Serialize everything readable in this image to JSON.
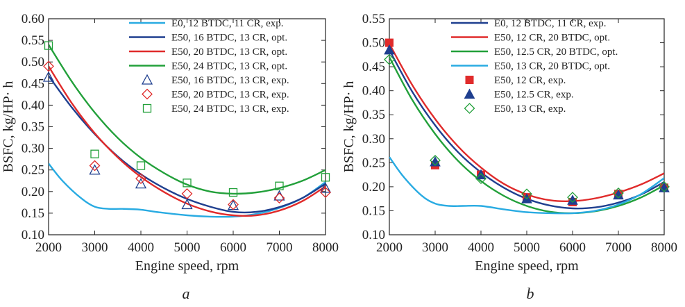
{
  "chart_data": [
    {
      "type": "line",
      "panel_label": "a",
      "xlabel": "Engine speed, rpm",
      "ylabel": "BSFC, kg/HP· h",
      "xlim": [
        2000,
        8000
      ],
      "ylim": [
        0.1,
        0.6
      ],
      "xticks": [
        2000,
        3000,
        4000,
        5000,
        6000,
        7000,
        8000
      ],
      "yticks": [
        0.1,
        0.15,
        0.2,
        0.25,
        0.3,
        0.35,
        0.4,
        0.45,
        0.5,
        0.55,
        0.6
      ],
      "legend_position": "top-right",
      "series": [
        {
          "name": "E0, 12 BTDC, 11 CR, exp.",
          "kind": "line",
          "color": "#29abe2",
          "x": [
            2000,
            2300,
            2700,
            3000,
            3300,
            3600,
            4000,
            4400,
            5000,
            5500,
            6000,
            6500,
            7000,
            7500,
            8000
          ],
          "y": [
            0.265,
            0.225,
            0.185,
            0.165,
            0.16,
            0.16,
            0.158,
            0.152,
            0.145,
            0.142,
            0.142,
            0.148,
            0.162,
            0.185,
            0.222
          ]
        },
        {
          "name": "E50, 16 BTDC, 13 CR, opt.",
          "kind": "line",
          "color": "#1f3f8f",
          "x": [
            2000,
            2500,
            3000,
            3500,
            4000,
            4500,
            5000,
            5500,
            6000,
            6500,
            7000,
            7500,
            8000
          ],
          "y": [
            0.468,
            0.395,
            0.333,
            0.281,
            0.24,
            0.208,
            0.183,
            0.165,
            0.153,
            0.153,
            0.164,
            0.185,
            0.218
          ]
        },
        {
          "name": "E50, 20 BTDC, 13 CR, opt.",
          "kind": "line",
          "color": "#e02b2b",
          "x": [
            2000,
            2500,
            3000,
            3500,
            4000,
            4500,
            5000,
            5500,
            6000,
            6500,
            7000,
            7500,
            8000
          ],
          "y": [
            0.49,
            0.405,
            0.335,
            0.279,
            0.234,
            0.199,
            0.172,
            0.154,
            0.145,
            0.145,
            0.156,
            0.178,
            0.212
          ]
        },
        {
          "name": "E50, 24 BTDC, 13 CR, opt.",
          "kind": "line",
          "color": "#22a03a",
          "x": [
            2000,
            2500,
            3000,
            3500,
            4000,
            4500,
            5000,
            5500,
            6000,
            6500,
            7000,
            7500,
            8000
          ],
          "y": [
            0.54,
            0.455,
            0.383,
            0.324,
            0.278,
            0.243,
            0.216,
            0.2,
            0.195,
            0.198,
            0.208,
            0.225,
            0.25
          ]
        },
        {
          "name": "E50, 16 BTDC, 13 CR, exp.",
          "kind": "marker",
          "marker": "triangle-open",
          "color": "#1f3f8f",
          "x": [
            2000,
            3000,
            4000,
            5000,
            6000,
            7000,
            8000
          ],
          "y": [
            0.465,
            0.25,
            0.218,
            0.17,
            0.168,
            0.19,
            0.208
          ]
        },
        {
          "name": "E50, 20 BTDC, 13 CR, exp.",
          "kind": "marker",
          "marker": "diamond-open",
          "color": "#e02b2b",
          "x": [
            2000,
            3000,
            4000,
            5000,
            6000,
            7000,
            8000
          ],
          "y": [
            0.49,
            0.26,
            0.23,
            0.195,
            0.17,
            0.185,
            0.198
          ]
        },
        {
          "name": "E50, 24 BTDC, 13 CR, exp.",
          "kind": "marker",
          "marker": "square-open",
          "color": "#22a03a",
          "x": [
            2000,
            3000,
            4000,
            5000,
            6000,
            7000,
            8000
          ],
          "y": [
            0.538,
            0.287,
            0.26,
            0.22,
            0.198,
            0.213,
            0.233
          ]
        }
      ]
    },
    {
      "type": "line",
      "panel_label": "b",
      "xlabel": "Engine speed, rpm",
      "ylabel": "BSFC, kg/HP· h",
      "xlim": [
        2000,
        8000
      ],
      "ylim": [
        0.1,
        0.55
      ],
      "xticks": [
        2000,
        3000,
        4000,
        5000,
        6000,
        7000,
        8000
      ],
      "yticks": [
        0.1,
        0.15,
        0.2,
        0.25,
        0.3,
        0.35,
        0.4,
        0.45,
        0.5,
        0.55
      ],
      "legend_position": "top-right",
      "series": [
        {
          "name": "E0, 12 BTDC, 11 CR, exp.",
          "kind": "line",
          "color": "#1f3f8f",
          "x": [
            2000,
            2500,
            3000,
            3500,
            4000,
            4500,
            5000,
            5500,
            6000,
            6500,
            7000,
            7500,
            8000
          ],
          "y": [
            0.485,
            0.398,
            0.328,
            0.272,
            0.23,
            0.198,
            0.175,
            0.161,
            0.155,
            0.157,
            0.167,
            0.184,
            0.21
          ]
        },
        {
          "name": "E50, 12 CR, 20 BTDC, opt.",
          "kind": "line",
          "color": "#e02b2b",
          "x": [
            2000,
            2500,
            3000,
            3500,
            4000,
            4500,
            5000,
            5500,
            6000,
            6500,
            7000,
            7500,
            8000
          ],
          "y": [
            0.498,
            0.412,
            0.341,
            0.284,
            0.24,
            0.206,
            0.184,
            0.172,
            0.17,
            0.176,
            0.188,
            0.205,
            0.228
          ]
        },
        {
          "name": "E50, 12.5 CR, 20 BTDC, opt.",
          "kind": "line",
          "color": "#22a03a",
          "x": [
            2000,
            2500,
            3000,
            3500,
            4000,
            4500,
            5000,
            5500,
            6000,
            6500,
            7000,
            7500,
            8000
          ],
          "y": [
            0.47,
            0.381,
            0.31,
            0.254,
            0.212,
            0.181,
            0.16,
            0.148,
            0.145,
            0.149,
            0.16,
            0.178,
            0.203
          ]
        },
        {
          "name": "E50, 13 CR, 20 BTDC, opt.",
          "kind": "line",
          "color": "#29abe2",
          "x": [
            2000,
            2300,
            2700,
            3000,
            3300,
            3600,
            4000,
            4500,
            5000,
            5500,
            6000,
            6500,
            7000,
            7500,
            8000
          ],
          "y": [
            0.262,
            0.222,
            0.182,
            0.165,
            0.16,
            0.16,
            0.16,
            0.153,
            0.147,
            0.145,
            0.145,
            0.15,
            0.163,
            0.185,
            0.218
          ]
        },
        {
          "name": "E50, 12 CR, exp.",
          "kind": "marker",
          "marker": "square-filled",
          "color": "#e02b2b",
          "x": [
            2000,
            3000,
            4000,
            5000,
            6000,
            7000,
            8000
          ],
          "y": [
            0.5,
            0.245,
            0.225,
            0.178,
            0.168,
            0.185,
            0.198
          ]
        },
        {
          "name": "E50, 12.5 CR, exp.",
          "kind": "marker",
          "marker": "triangle-filled",
          "color": "#1f3f8f",
          "x": [
            2000,
            3000,
            4000,
            5000,
            6000,
            7000,
            8000
          ],
          "y": [
            0.485,
            0.252,
            0.225,
            0.175,
            0.172,
            0.183,
            0.198
          ]
        },
        {
          "name": "E50, 13 CR, exp.",
          "kind": "marker",
          "marker": "diamond-open",
          "color": "#22a03a",
          "x": [
            2000,
            3000,
            4000,
            5000,
            6000,
            7000,
            8000
          ],
          "y": [
            0.465,
            0.255,
            0.217,
            0.185,
            0.178,
            0.187,
            0.2
          ]
        }
      ]
    }
  ]
}
